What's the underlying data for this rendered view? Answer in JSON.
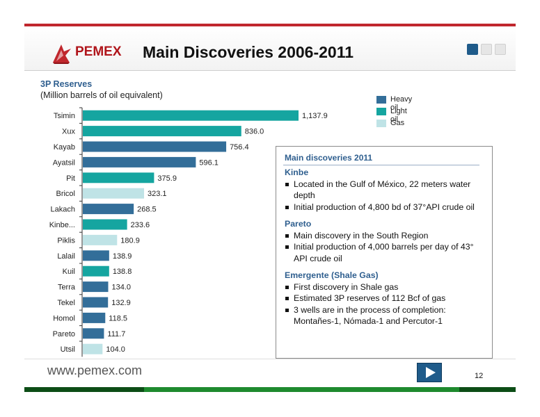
{
  "header": {
    "logo_text": "PEMEX",
    "logo_reg": "®",
    "title": "Main Discoveries 2006-2011"
  },
  "subtitle": {
    "line1": "3P Reserves",
    "line2": "(Million barrels of oil equivalent)"
  },
  "legend": [
    {
      "label": "Heavy oil",
      "color": "#336e99"
    },
    {
      "label": "Light oil",
      "color": "#15a5a0"
    },
    {
      "label": "Gas",
      "color": "#bfe3e6"
    }
  ],
  "chart_data": {
    "type": "bar",
    "orientation": "horizontal",
    "categories": [
      "Tsimin",
      "Xux",
      "Kayab",
      "Ayatsil",
      "Pit",
      "Bricol",
      "Lakach",
      "Kinbe...",
      "Piklis",
      "Lalail",
      "Kuil",
      "Terra",
      "Tekel",
      "Homol",
      "Pareto",
      "Utsil"
    ],
    "values": [
      1137.9,
      836.0,
      756.4,
      596.1,
      375.9,
      323.1,
      268.5,
      233.6,
      180.9,
      138.9,
      138.8,
      134.0,
      132.9,
      118.5,
      111.7,
      104.0
    ],
    "value_labels": [
      "1,137.9",
      "836.0",
      "756.4",
      "596.1",
      "375.9",
      "323.1",
      "268.5",
      "233.6",
      "180.9",
      "138.9",
      "138.8",
      "134.0",
      "132.9",
      "118.5",
      "111.7",
      "104.0"
    ],
    "types": [
      "Light oil",
      "Light oil",
      "Heavy oil",
      "Heavy oil",
      "Light oil",
      "Gas",
      "Heavy oil",
      "Light oil",
      "Gas",
      "Heavy oil",
      "Light oil",
      "Heavy oil",
      "Heavy oil",
      "Heavy oil",
      "Heavy oil",
      "Gas"
    ],
    "xlim": [
      0,
      1137.9
    ],
    "grid": false,
    "legend_position": "top-right"
  },
  "box": {
    "title": "Main discoveries 2011",
    "sections": [
      {
        "heading": "Kinbe",
        "bullets": [
          "Located in the Gulf of México, 22 meters water depth",
          "Initial production of 4,800 bd of 37°API crude oil"
        ]
      },
      {
        "heading": "Pareto",
        "bullets": [
          "Main discovery in the South Region",
          "Initial production of 4,000 barrels per day of 43° API crude oil"
        ]
      },
      {
        "heading": "Emergente (Shale Gas)",
        "bullets": [
          "First discovery in Shale gas",
          "Estimated 3P reserves of 112 Bcf of gas",
          "3 wells are in the process of completion: Montañes-1, Nómada-1 and Percutor-1"
        ]
      }
    ]
  },
  "footer": {
    "url": "www.pemex.com",
    "page": "12"
  },
  "colors": {
    "brand_red": "#c0272d",
    "brand_green": "#1e8a2e",
    "nav_blue": "#1f5b8a"
  }
}
